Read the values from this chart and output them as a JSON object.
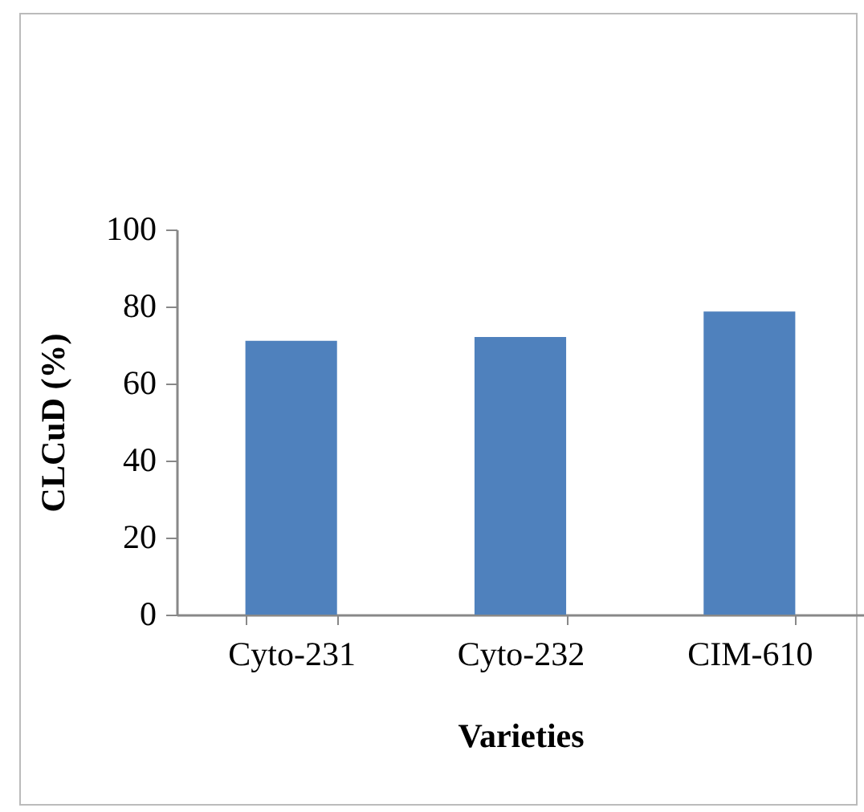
{
  "chart_data": {
    "type": "bar",
    "xlabel": "Varieties",
    "ylabel": "CLCuD (%)",
    "categories": [
      "Cyto-231",
      "Cyto-232",
      "CIM-610"
    ],
    "values": [
      71.1,
      72.1,
      78.7
    ],
    "color": "#4f81bd",
    "ylim": [
      0,
      100
    ],
    "yticks": [
      0,
      20,
      40,
      60,
      80,
      100
    ],
    "grid": false
  }
}
